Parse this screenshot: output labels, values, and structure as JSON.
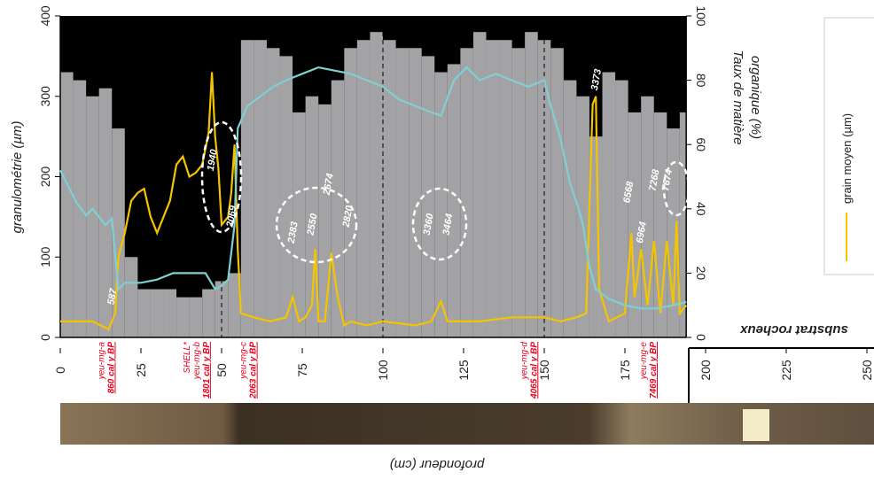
{
  "chart_data": {
    "type": "line",
    "y_label": "granulométrie (µm)",
    "y2_label": [
      "Taux de matière",
      "organique (%)"
    ],
    "x_label": "profondeur (cm)",
    "region_label": "substrat rocheux",
    "bedrock_depth": 194,
    "xlim": [
      0,
      250
    ],
    "xticks": [
      0,
      25,
      50,
      75,
      100,
      125,
      150,
      175,
      200,
      225,
      250
    ],
    "ylim": [
      0,
      400
    ],
    "yticks": [
      0,
      100,
      200,
      300,
      400
    ],
    "y2lim": [
      0,
      100
    ],
    "y2ticks": [
      0,
      20,
      40,
      60,
      80,
      100
    ],
    "dividers": [
      50,
      100,
      150
    ],
    "distribution": {
      "color": "#a3a3a5",
      "background": "#000000",
      "bins": [
        0,
        4,
        8,
        12,
        16,
        20,
        24,
        28,
        32,
        36,
        40,
        44,
        48,
        52,
        56,
        60,
        64,
        68,
        72,
        76,
        80,
        84,
        88,
        92,
        96,
        100,
        104,
        108,
        112,
        116,
        120,
        124,
        128,
        132,
        136,
        140,
        144,
        148,
        152,
        156,
        160,
        164,
        168,
        172,
        176,
        180,
        184,
        188,
        192,
        194
      ],
      "values": [
        330,
        320,
        300,
        310,
        260,
        100,
        60,
        60,
        60,
        50,
        50,
        60,
        70,
        80,
        370,
        370,
        360,
        350,
        280,
        300,
        290,
        320,
        360,
        370,
        380,
        370,
        360,
        360,
        350,
        330,
        340,
        360,
        380,
        370,
        370,
        360,
        380,
        370,
        360,
        320,
        300,
        250,
        330,
        320,
        280,
        300,
        280,
        260,
        280
      ]
    },
    "series": [
      {
        "name": "grain moyen (µm)",
        "color": "#f5c400",
        "axis": "y",
        "x": [
          0,
          10,
          15,
          17,
          18,
          20,
          22,
          24,
          26,
          28,
          30,
          32,
          34,
          36,
          38,
          40,
          42,
          44,
          46,
          47,
          48,
          49,
          50,
          52,
          53,
          54,
          55,
          56,
          60,
          65,
          70,
          72,
          74,
          76,
          78,
          79,
          80,
          82,
          84,
          86,
          88,
          90,
          95,
          100,
          110,
          115,
          118,
          120,
          130,
          140,
          150,
          155,
          160,
          163,
          165,
          166,
          167,
          170,
          175,
          177,
          178,
          180,
          182,
          184,
          186,
          188,
          190,
          191,
          192,
          194
        ],
        "values": [
          20,
          20,
          10,
          30,
          100,
          130,
          170,
          180,
          185,
          150,
          130,
          150,
          170,
          215,
          225,
          200,
          205,
          215,
          255,
          330,
          250,
          210,
          140,
          150,
          180,
          240,
          110,
          30,
          25,
          20,
          25,
          50,
          20,
          25,
          40,
          110,
          20,
          20,
          105,
          50,
          15,
          20,
          15,
          20,
          15,
          20,
          45,
          20,
          20,
          25,
          25,
          20,
          25,
          30,
          290,
          300,
          60,
          20,
          30,
          130,
          50,
          110,
          40,
          120,
          30,
          120,
          40,
          145,
          30,
          40
        ]
      },
      {
        "color": "#7fd0d3",
        "axis": "y2",
        "x": [
          0,
          5,
          8,
          10,
          14,
          16,
          18,
          20,
          25,
          30,
          35,
          40,
          45,
          48,
          50,
          52,
          54,
          55,
          58,
          62,
          66,
          70,
          75,
          80,
          85,
          90,
          95,
          100,
          105,
          110,
          115,
          118,
          122,
          126,
          130,
          135,
          140,
          145,
          150,
          152,
          155,
          158,
          160,
          162,
          164,
          166,
          170,
          175,
          180,
          185,
          190,
          194
        ],
        "values": [
          52,
          42,
          38,
          40,
          35,
          37,
          15,
          17,
          17,
          18,
          20,
          20,
          20,
          15,
          16,
          18,
          35,
          65,
          72,
          75,
          78,
          80,
          82,
          84,
          83,
          82,
          80,
          78,
          74,
          72,
          70,
          69,
          80,
          84,
          80,
          82,
          80,
          78,
          80,
          72,
          62,
          48,
          42,
          35,
          22,
          15,
          12,
          10,
          9,
          9,
          10,
          11
        ]
      }
    ],
    "annotations": [
      {
        "text": "587",
        "x": 17,
        "y": 50
      },
      {
        "text": "1940",
        "x": 48,
        "y": 220
      },
      {
        "text": "2069",
        "x": 54,
        "y": 150
      },
      {
        "text": "2383",
        "x": 73,
        "y": 130
      },
      {
        "text": "2550",
        "x": 79,
        "y": 140
      },
      {
        "text": "2674",
        "x": 84,
        "y": 190
      },
      {
        "text": "2820",
        "x": 90,
        "y": 150
      },
      {
        "text": "3360",
        "x": 115,
        "y": 140
      },
      {
        "text": "3464",
        "x": 121,
        "y": 140
      },
      {
        "text": "3373",
        "x": 167,
        "y": 320
      },
      {
        "text": "6568",
        "x": 177,
        "y": 180
      },
      {
        "text": "6964",
        "x": 181,
        "y": 130
      },
      {
        "text": "7268",
        "x": 185,
        "y": 195
      },
      {
        "text": "7674",
        "x": 189,
        "y": 195
      }
    ],
    "samples": [
      {
        "labels": [
          "yeu-mg-a",
          "860 cal y BP"
        ],
        "x": 14
      },
      {
        "labels": [
          "SHELL*",
          "yeu-mg-b",
          "1801 cal y BP"
        ],
        "x": 42
      },
      {
        "labels": [
          "yeu-mg-c",
          "2063 cal y BP"
        ],
        "x": 58
      },
      {
        "labels": [
          "yeu-mg-d",
          "4065 cal y BP"
        ],
        "x": 145
      },
      {
        "labels": [
          "yeu-mg-e",
          "7469 cal y BP"
        ],
        "x": 182
      }
    ]
  }
}
